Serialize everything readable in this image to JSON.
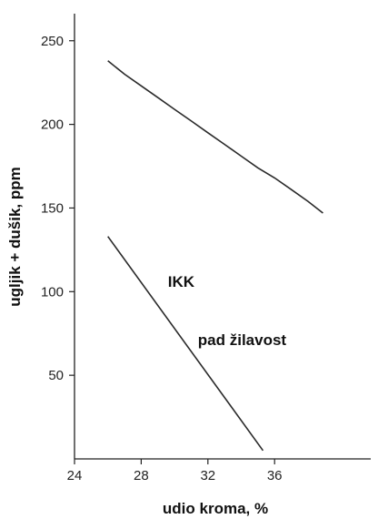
{
  "chart_data": {
    "type": "line",
    "title": "",
    "xlabel": "udio kroma, %",
    "ylabel": "ugljik + dušik, ppm",
    "xlim": [
      24,
      39
    ],
    "ylim": [
      0,
      265
    ],
    "xticks": [
      24,
      28,
      32,
      36
    ],
    "yticks": [
      50,
      100,
      150,
      200,
      250
    ],
    "grid": false,
    "legend": "none",
    "series": [
      {
        "name": "",
        "x": [
          26.0,
          27.0,
          28.0,
          29.0,
          30.0,
          31.0,
          32.0,
          33.0,
          34.0,
          35.0,
          36.0,
          37.0,
          38.0,
          38.9
        ],
        "values": [
          238,
          230,
          223,
          216,
          209,
          202,
          195,
          188,
          181,
          174,
          168,
          161,
          154,
          147
        ]
      },
      {
        "name": "",
        "x": [
          26.0,
          35.3
        ],
        "values": [
          133,
          5
        ]
      }
    ],
    "annotations": [
      {
        "text": "IKK",
        "x": 29.6,
        "y": 103
      },
      {
        "text": "pad žilavost",
        "x": 31.4,
        "y": 68
      }
    ]
  }
}
